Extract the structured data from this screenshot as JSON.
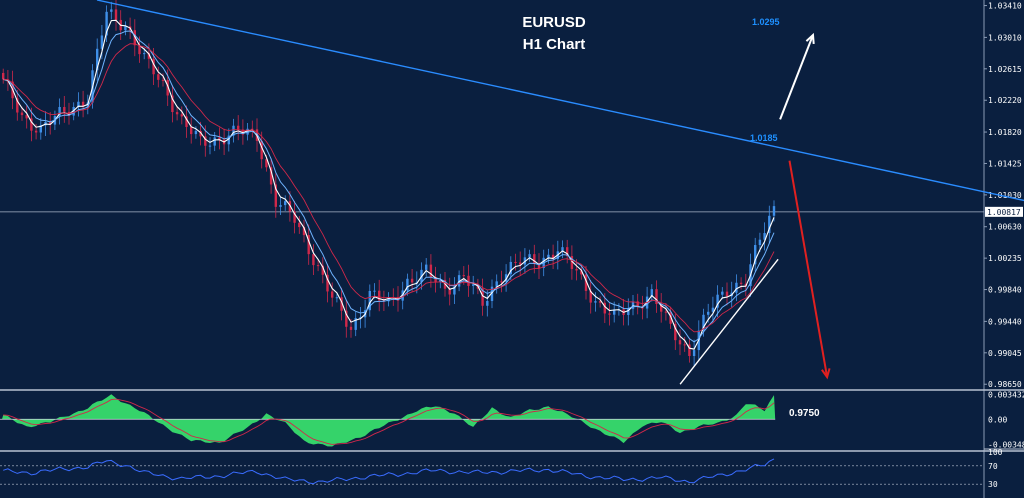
{
  "chart_data": {
    "type": "candlestick",
    "title": "EURUSD",
    "subtitle": "H1 Chart",
    "colors": {
      "background": "#0a1f3f",
      "bull": "#3f8fe8",
      "bear": "#d0284a",
      "trendline": "#2a8cff",
      "ma_fast": "#ffffff",
      "ma_mid": "#6fb4ff",
      "ma_slow": "#d0284a",
      "osc_fill": "#35d36a",
      "rsi_line": "#3a6cff",
      "up_arrow": "#ffffff",
      "down_arrow": "#e02020"
    },
    "price_axis": {
      "ticks": [
        "1.03410",
        "1.03010",
        "1.02615",
        "1.02220",
        "1.01820",
        "1.01425",
        "1.01030",
        "1.00630",
        "1.00235",
        "0.99840",
        "0.99440",
        "0.99045",
        "0.98650"
      ],
      "tick_values": [
        1.0341,
        1.0301,
        1.02615,
        1.0222,
        1.0182,
        1.01425,
        1.0103,
        1.0063,
        1.00235,
        0.9984,
        0.9944,
        0.99045,
        0.9865
      ],
      "range": [
        0.9859,
        1.0348
      ]
    },
    "current_price": {
      "label": "1.00817",
      "value": 1.00817
    },
    "annotations": [
      {
        "text": "1.0295",
        "price": 1.0295
      },
      {
        "text": "1.0185",
        "price": 1.0185
      },
      {
        "text": "0.9750",
        "price": 0.975
      }
    ],
    "trendline": {
      "from_bar": 0,
      "from_price": 1.0348,
      "to_bar": 199,
      "to_price": 1.0096
    },
    "support_line": {
      "from_bar": 143,
      "from_price": 0.9865,
      "to_bar": 163,
      "to_price": 1.0022
    },
    "arrows": [
      {
        "direction": "up",
        "from_bar": 163,
        "from_price": 1.0198,
        "to_bar": 170,
        "to_price": 1.0304
      },
      {
        "direction": "down",
        "from_bar": 165,
        "from_price": 1.0146,
        "to_bar": 173,
        "to_price": 0.9874
      }
    ],
    "close_anchors": [
      [
        0,
        1.0244
      ],
      [
        4,
        1.0202
      ],
      [
        8,
        1.0185
      ],
      [
        14,
        1.0212
      ],
      [
        18,
        1.0225
      ],
      [
        22,
        1.0332
      ],
      [
        26,
        1.0318
      ],
      [
        30,
        1.0272
      ],
      [
        34,
        1.0243
      ],
      [
        38,
        1.0195
      ],
      [
        42,
        1.0168
      ],
      [
        46,
        1.0175
      ],
      [
        50,
        1.0182
      ],
      [
        54,
        1.0178
      ],
      [
        58,
        1.0095
      ],
      [
        62,
        1.0072
      ],
      [
        66,
        1.0025
      ],
      [
        70,
        0.9972
      ],
      [
        74,
        0.9935
      ],
      [
        78,
        0.9978
      ],
      [
        82,
        0.9965
      ],
      [
        86,
        0.9995
      ],
      [
        90,
        1.0005
      ],
      [
        94,
        0.9985
      ],
      [
        98,
        1.0002
      ],
      [
        102,
        0.9965
      ],
      [
        106,
        1.0005
      ],
      [
        110,
        1.0018
      ],
      [
        114,
        1.002
      ],
      [
        118,
        1.0035
      ],
      [
        122,
        1.0005
      ],
      [
        126,
        0.997
      ],
      [
        130,
        0.9948
      ],
      [
        134,
        0.9965
      ],
      [
        138,
        0.9978
      ],
      [
        142,
        0.9935
      ],
      [
        146,
        0.9905
      ],
      [
        150,
        0.9955
      ],
      [
        154,
        0.9985
      ],
      [
        158,
        0.9995
      ],
      [
        161,
        1.0045
      ],
      [
        164,
        1.0087
      ]
    ],
    "oscillator": {
      "ticks": [
        "0.003432",
        "0.00",
        "-0.00348"
      ],
      "tick_values": [
        0.003432,
        0,
        -0.00348
      ],
      "range": [
        -0.0041,
        0.0039
      ],
      "value_anchors": [
        [
          0,
          0.0005
        ],
        [
          5,
          -0.001
        ],
        [
          10,
          -0.0004
        ],
        [
          18,
          0.0016
        ],
        [
          23,
          0.0033
        ],
        [
          28,
          0.0016
        ],
        [
          34,
          -0.0008
        ],
        [
          40,
          -0.003
        ],
        [
          46,
          -0.0032
        ],
        [
          52,
          -0.0012
        ],
        [
          56,
          0.0008
        ],
        [
          60,
          -0.0006
        ],
        [
          64,
          -0.003
        ],
        [
          70,
          -0.0038
        ],
        [
          76,
          -0.0024
        ],
        [
          82,
          -0.0006
        ],
        [
          88,
          0.0012
        ],
        [
          92,
          0.0018
        ],
        [
          96,
          0.0009
        ],
        [
          100,
          -0.0012
        ],
        [
          104,
          0.0016
        ],
        [
          108,
          0.0002
        ],
        [
          112,
          0.0012
        ],
        [
          116,
          0.0018
        ],
        [
          120,
          0.0006
        ],
        [
          124,
          -0.0006
        ],
        [
          128,
          -0.002
        ],
        [
          132,
          -0.0032
        ],
        [
          136,
          -0.0008
        ],
        [
          140,
          -0.0004
        ],
        [
          144,
          -0.0018
        ],
        [
          148,
          -0.001
        ],
        [
          152,
          -0.0006
        ],
        [
          156,
          0.0006
        ],
        [
          158,
          0.0022
        ],
        [
          160,
          0.0018
        ],
        [
          162,
          0.0012
        ],
        [
          164,
          0.0033
        ]
      ]
    },
    "rsi": {
      "ticks": [
        "100",
        "70",
        "30"
      ],
      "tick_values": [
        100,
        70,
        30
      ],
      "range": [
        0,
        100
      ],
      "levels": [
        70,
        30
      ],
      "value_anchors": [
        [
          0,
          58
        ],
        [
          6,
          55
        ],
        [
          12,
          62
        ],
        [
          18,
          68
        ],
        [
          22,
          80
        ],
        [
          26,
          72
        ],
        [
          30,
          55
        ],
        [
          38,
          42
        ],
        [
          46,
          48
        ],
        [
          54,
          58
        ],
        [
          60,
          40
        ],
        [
          68,
          35
        ],
        [
          76,
          45
        ],
        [
          84,
          52
        ],
        [
          92,
          60
        ],
        [
          100,
          55
        ],
        [
          108,
          58
        ],
        [
          116,
          62
        ],
        [
          124,
          48
        ],
        [
          132,
          40
        ],
        [
          140,
          44
        ],
        [
          146,
          36
        ],
        [
          152,
          48
        ],
        [
          158,
          62
        ],
        [
          162,
          72
        ],
        [
          164,
          84
        ]
      ]
    }
  }
}
